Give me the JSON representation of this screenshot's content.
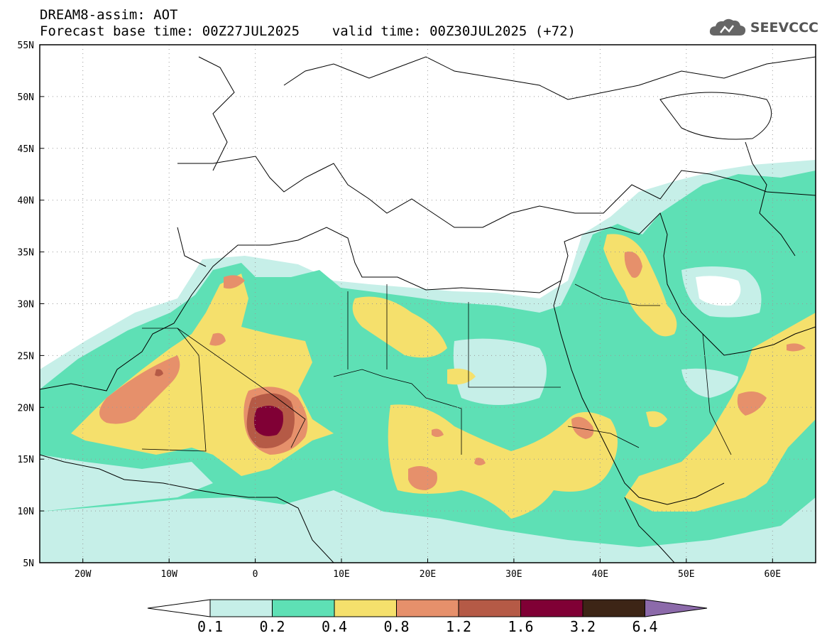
{
  "header": {
    "line1": "DREAM8-assim: AOT",
    "line2": "Forecast base time: 00Z27JUL2025    valid time: 00Z30JUL2025 (+72)"
  },
  "logo": {
    "text": "SEEVCCC",
    "icon": "cloud-icon"
  },
  "map": {
    "lon_range": [
      -25,
      65
    ],
    "lat_range": [
      5,
      55
    ],
    "x_ticks": [
      "20W",
      "10W",
      "0",
      "10E",
      "20E",
      "30E",
      "40E",
      "50E",
      "60E"
    ],
    "y_ticks": [
      "55N",
      "50N",
      "45N",
      "40N",
      "35N",
      "30N",
      "25N",
      "20N",
      "15N",
      "10N",
      "5N"
    ],
    "grid": "dotted"
  },
  "colorbar": {
    "levels": [
      "0.1",
      "0.2",
      "0.4",
      "0.8",
      "1.2",
      "1.6",
      "3.2",
      "6.4"
    ],
    "colors": [
      "#ffffff",
      "#c6efe8",
      "#5ee0b5",
      "#f5e06c",
      "#e6906b",
      "#b55a46",
      "#800035",
      "#3d2516",
      "#8c6aaa"
    ]
  }
}
